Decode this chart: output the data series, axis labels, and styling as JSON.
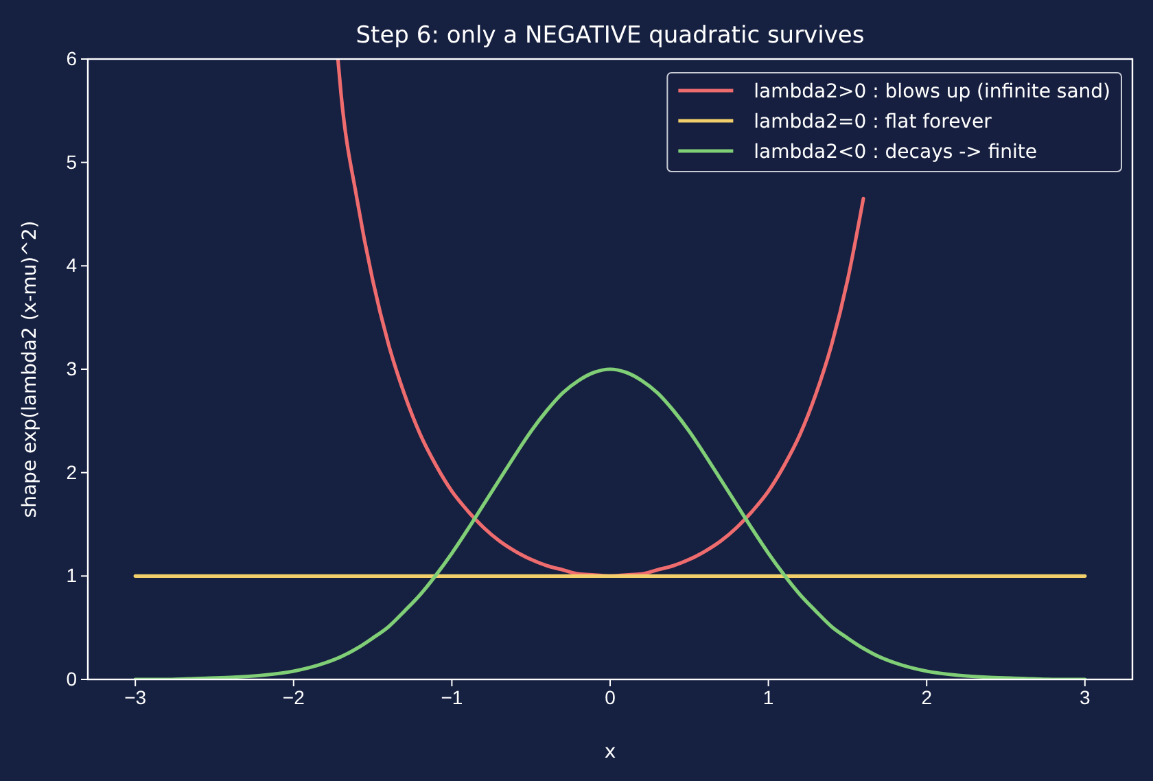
{
  "chart_data": {
    "type": "line",
    "title": "Step 6: only a NEGATIVE quadratic survives",
    "xlabel": "x",
    "ylabel": "shape exp(lambda2 (x-mu)^2)",
    "xlim": [
      -3.3,
      3.3
    ],
    "ylim": [
      0,
      6
    ],
    "xticks": [
      {
        "value": -3,
        "label": "−3"
      },
      {
        "value": -2,
        "label": "−2"
      },
      {
        "value": -1,
        "label": "−1"
      },
      0,
      1,
      2,
      3
    ],
    "yticks": [
      0,
      1,
      2,
      3,
      4,
      5,
      6
    ],
    "grid": false,
    "legend": "top right",
    "line_style": "solid",
    "marker": "none",
    "series": [
      {
        "name": "lambda2>0 : blows up (infinite sand)",
        "color": "#ee6b6e",
        "x": [
          -1.72,
          -1.7,
          -1.6,
          -1.5,
          -1.4,
          -1.3,
          -1.2,
          -1.1,
          -1.0,
          -0.9,
          -0.8,
          -0.7,
          -0.6,
          -0.5,
          -0.4,
          -0.3,
          -0.2,
          -0.1,
          0,
          0.1,
          0.2,
          0.3,
          0.4,
          0.5,
          0.6,
          0.7,
          0.8,
          0.9,
          1.0,
          1.1,
          1.2,
          1.3,
          1.4,
          1.5,
          1.6
        ],
        "values": [
          6.0,
          5.66,
          4.65,
          3.86,
          3.24,
          2.76,
          2.37,
          2.07,
          1.82,
          1.63,
          1.47,
          1.34,
          1.24,
          1.16,
          1.1,
          1.06,
          1.02,
          1.01,
          1.0,
          1.01,
          1.02,
          1.06,
          1.1,
          1.16,
          1.24,
          1.34,
          1.47,
          1.63,
          1.82,
          2.07,
          2.37,
          2.76,
          3.24,
          3.86,
          4.65
        ]
      },
      {
        "name": "lambda2=0 : flat forever",
        "color": "#f2cf6b",
        "x": [
          -3,
          3
        ],
        "values": [
          1,
          1
        ]
      },
      {
        "name": "lambda2<0 : decays -> finite",
        "color": "#80cf77",
        "x": [
          -3,
          -2.8,
          -2.6,
          -2.4,
          -2.2,
          -2.0,
          -1.8,
          -1.7,
          -1.6,
          -1.5,
          -1.4,
          -1.3,
          -1.2,
          -1.1,
          -1.0,
          -0.9,
          -0.8,
          -0.7,
          -0.6,
          -0.5,
          -0.4,
          -0.3,
          -0.2,
          -0.1,
          0,
          0.1,
          0.2,
          0.3,
          0.4,
          0.5,
          0.6,
          0.7,
          0.8,
          0.9,
          1.0,
          1.1,
          1.2,
          1.3,
          1.4,
          1.5,
          1.6,
          1.7,
          1.8,
          2.0,
          2.2,
          2.4,
          2.6,
          2.8,
          3
        ],
        "values": [
          0.0,
          0.0,
          0.01,
          0.02,
          0.04,
          0.08,
          0.16,
          0.22,
          0.3,
          0.4,
          0.51,
          0.66,
          0.82,
          1.01,
          1.22,
          1.45,
          1.69,
          1.93,
          2.17,
          2.4,
          2.6,
          2.77,
          2.89,
          2.97,
          3.0,
          2.97,
          2.89,
          2.77,
          2.6,
          2.4,
          2.17,
          1.93,
          1.69,
          1.45,
          1.22,
          1.01,
          0.82,
          0.66,
          0.51,
          0.4,
          0.3,
          0.22,
          0.16,
          0.08,
          0.04,
          0.02,
          0.01,
          0.0,
          0.0
        ]
      }
    ]
  }
}
